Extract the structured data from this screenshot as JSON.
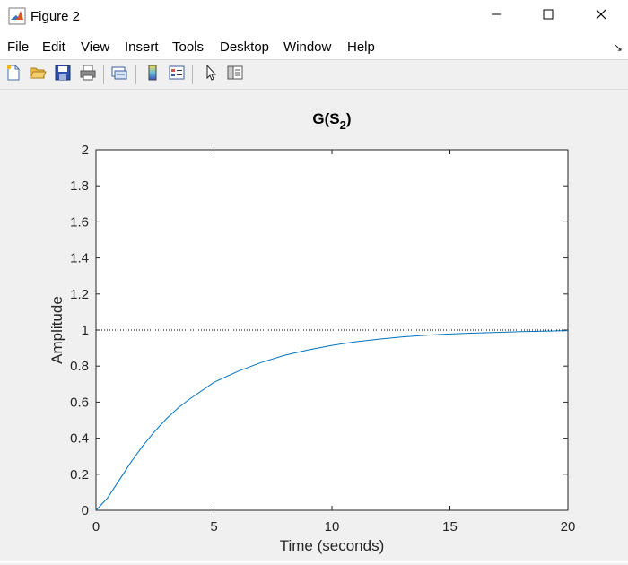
{
  "window": {
    "title": "Figure 2",
    "app_icon": "matlab-icon",
    "controls": [
      "minimize-icon",
      "maximize-icon",
      "close-icon"
    ]
  },
  "menu": {
    "items": [
      "File",
      "Edit",
      "View",
      "Insert",
      "Tools",
      "Desktop",
      "Window",
      "Help"
    ],
    "dock_arrow": "↘"
  },
  "toolbar": {
    "buttons": [
      "new-figure-icon",
      "open-file-icon",
      "save-icon",
      "print-icon",
      "link-plot-icon",
      "insert-colorbar-icon",
      "insert-legend-icon",
      "edit-plot-icon",
      "property-inspector-icon"
    ]
  },
  "colors": {
    "line": "#0072bd",
    "axes_background": "#ffffff",
    "figure_background": "#f0f0f0"
  },
  "chart_data": {
    "type": "line",
    "title_main": "G(S",
    "title_sub": "2",
    "title_close": ")",
    "xlabel": "Time (seconds)",
    "ylabel": "Amplitude",
    "xlim": [
      0,
      20
    ],
    "ylim": [
      0,
      2
    ],
    "xticks": [
      "0",
      "5",
      "10",
      "15",
      "20"
    ],
    "yticks": [
      "0",
      "0.2",
      "0.4",
      "0.6",
      "0.8",
      "1",
      "1.2",
      "1.4",
      "1.6",
      "1.8",
      "2"
    ],
    "grid": false,
    "reference_line": 1,
    "series": [
      {
        "x": [
          0,
          0.5,
          1,
          1.5,
          2,
          2.5,
          3,
          3.5,
          4,
          5,
          6,
          7,
          8,
          9,
          10,
          11,
          12,
          13,
          14,
          15,
          16,
          17,
          18,
          19,
          20
        ],
        "values": [
          0,
          0.07,
          0.17,
          0.27,
          0.36,
          0.44,
          0.51,
          0.57,
          0.62,
          0.71,
          0.77,
          0.82,
          0.86,
          0.89,
          0.915,
          0.935,
          0.95,
          0.962,
          0.971,
          0.978,
          0.983,
          0.987,
          0.991,
          0.994,
          0.997
        ]
      }
    ]
  }
}
